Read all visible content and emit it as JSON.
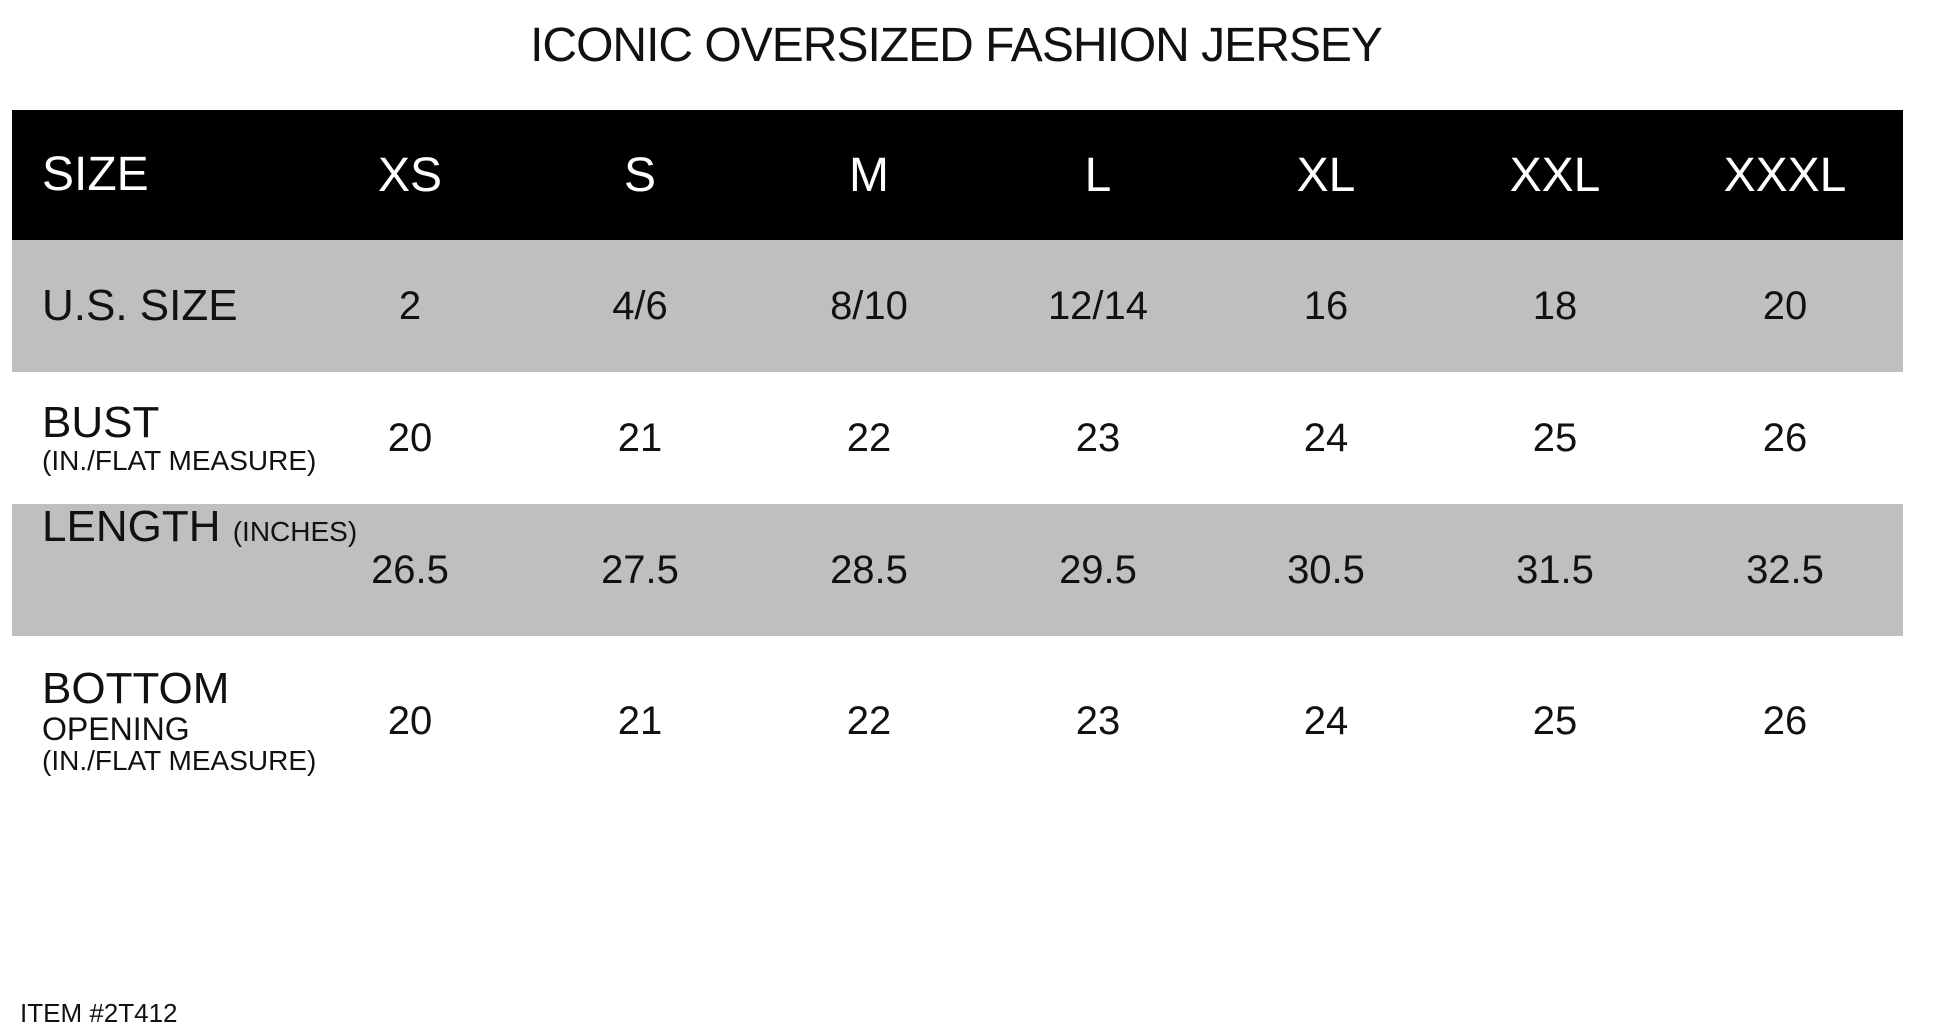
{
  "title": "ICONIC OVERSIZED FASHION JERSEY",
  "header": {
    "label": "SIZE",
    "sizes": [
      "XS",
      "S",
      "M",
      "L",
      "XL",
      "XXL",
      "XXXL"
    ]
  },
  "rows": [
    {
      "label": "U.S. SIZE",
      "sub": "",
      "values": [
        "2",
        "4/6",
        "8/10",
        "12/14",
        "16",
        "18",
        "20"
      ]
    },
    {
      "label": "BUST",
      "sub": "(IN./FLAT MEASURE)",
      "values": [
        "20",
        "21",
        "22",
        "23",
        "24",
        "25",
        "26"
      ]
    },
    {
      "label": "LENGTH",
      "sub": "(INCHES)",
      "values": [
        "26.5",
        "27.5",
        "28.5",
        "29.5",
        "30.5",
        "31.5",
        "32.5"
      ]
    },
    {
      "label": "BOTTOM",
      "sub2": "OPENING",
      "sub": "(IN./FLAT MEASURE)",
      "values": [
        "20",
        "21",
        "22",
        "23",
        "24",
        "25",
        "26"
      ]
    }
  ],
  "item": "ITEM #2T412",
  "colors": {
    "header_bg": "#000000",
    "stripe": "#bfbfbf"
  }
}
